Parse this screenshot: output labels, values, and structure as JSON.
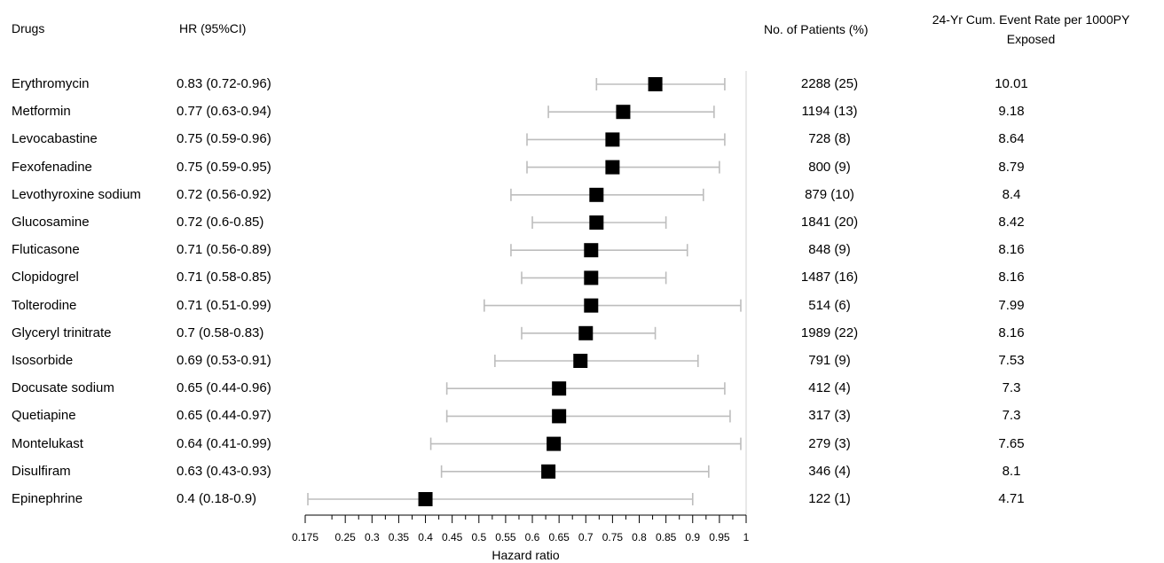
{
  "headers": {
    "drugs": "Drugs",
    "hr": "HR (95%CI)",
    "patients": "No. of Patients (%)",
    "event_rate": "24-Yr Cum. Event Rate per 1000PY Exposed"
  },
  "chart_data": {
    "type": "forest",
    "xlabel": "Hazard ratio",
    "xlim": [
      0.175,
      1
    ],
    "xticks": [
      0.175,
      0.25,
      0.3,
      0.35,
      0.4,
      0.45,
      0.5,
      0.55,
      0.6,
      0.65,
      0.7,
      0.75,
      0.8,
      0.85,
      0.9,
      0.95,
      1
    ],
    "xtick_labels": [
      "0.175",
      "0.25",
      "0.3",
      "0.35",
      "0.4",
      "0.45",
      "0.5",
      "0.55",
      "0.6",
      "0.65",
      "0.7",
      "0.75",
      "0.8",
      "0.85",
      "0.9",
      "0.95",
      "1"
    ],
    "rows": [
      {
        "drug": "Erythromycin",
        "hr_text": "0.83 (0.72-0.96)",
        "hr": 0.83,
        "lo": 0.72,
        "hi": 0.96,
        "patients": "2288 (25)",
        "rate": "10.01"
      },
      {
        "drug": "Metformin",
        "hr_text": "0.77 (0.63-0.94)",
        "hr": 0.77,
        "lo": 0.63,
        "hi": 0.94,
        "patients": "1194 (13)",
        "rate": "9.18"
      },
      {
        "drug": "Levocabastine",
        "hr_text": "0.75 (0.59-0.96)",
        "hr": 0.75,
        "lo": 0.59,
        "hi": 0.96,
        "patients": "728 (8)",
        "rate": "8.64"
      },
      {
        "drug": "Fexofenadine",
        "hr_text": "0.75 (0.59-0.95)",
        "hr": 0.75,
        "lo": 0.59,
        "hi": 0.95,
        "patients": "800 (9)",
        "rate": "8.79"
      },
      {
        "drug": "Levothyroxine sodium",
        "hr_text": "0.72 (0.56-0.92)",
        "hr": 0.72,
        "lo": 0.56,
        "hi": 0.92,
        "patients": "879 (10)",
        "rate": "8.4"
      },
      {
        "drug": "Glucosamine",
        "hr_text": "0.72 (0.6-0.85)",
        "hr": 0.72,
        "lo": 0.6,
        "hi": 0.85,
        "patients": "1841 (20)",
        "rate": "8.42"
      },
      {
        "drug": "Fluticasone",
        "hr_text": "0.71 (0.56-0.89)",
        "hr": 0.71,
        "lo": 0.56,
        "hi": 0.89,
        "patients": "848 (9)",
        "rate": "8.16"
      },
      {
        "drug": "Clopidogrel",
        "hr_text": "0.71 (0.58-0.85)",
        "hr": 0.71,
        "lo": 0.58,
        "hi": 0.85,
        "patients": "1487 (16)",
        "rate": "8.16"
      },
      {
        "drug": "Tolterodine",
        "hr_text": "0.71 (0.51-0.99)",
        "hr": 0.71,
        "lo": 0.51,
        "hi": 0.99,
        "patients": "514 (6)",
        "rate": "7.99"
      },
      {
        "drug": "Glyceryl trinitrate",
        "hr_text": "0.7 (0.58-0.83)",
        "hr": 0.7,
        "lo": 0.58,
        "hi": 0.83,
        "patients": "1989 (22)",
        "rate": "8.16"
      },
      {
        "drug": "Isosorbide",
        "hr_text": "0.69 (0.53-0.91)",
        "hr": 0.69,
        "lo": 0.53,
        "hi": 0.91,
        "patients": "791 (9)",
        "rate": "7.53"
      },
      {
        "drug": "Docusate sodium",
        "hr_text": "0.65 (0.44-0.96)",
        "hr": 0.65,
        "lo": 0.44,
        "hi": 0.96,
        "patients": "412 (4)",
        "rate": "7.3"
      },
      {
        "drug": "Quetiapine",
        "hr_text": "0.65 (0.44-0.97)",
        "hr": 0.65,
        "lo": 0.44,
        "hi": 0.97,
        "patients": "317 (3)",
        "rate": "7.3"
      },
      {
        "drug": "Montelukast",
        "hr_text": "0.64 (0.41-0.99)",
        "hr": 0.64,
        "lo": 0.41,
        "hi": 0.99,
        "patients": "279 (3)",
        "rate": "7.65"
      },
      {
        "drug": "Disulfiram",
        "hr_text": "0.63 (0.43-0.93)",
        "hr": 0.63,
        "lo": 0.43,
        "hi": 0.93,
        "patients": "346 (4)",
        "rate": "8.1"
      },
      {
        "drug": "Epinephrine",
        "hr_text": "0.4 (0.18-0.9)",
        "hr": 0.4,
        "lo": 0.18,
        "hi": 0.9,
        "patients": "122 (1)",
        "rate": "4.71"
      }
    ]
  }
}
